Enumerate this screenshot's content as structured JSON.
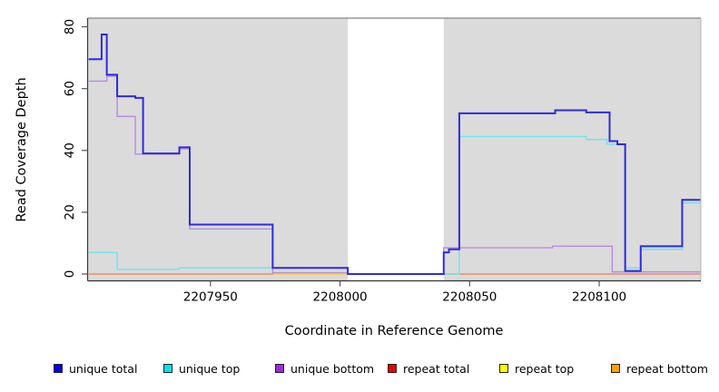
{
  "chart_data": {
    "type": "line",
    "subtype": "step-coverage-plot",
    "title": "",
    "xlabel": "Coordinate in Reference Genome",
    "ylabel": "Read Coverage Depth",
    "xlim": [
      2207902.6,
      2208139.2
    ],
    "ylim": [
      -2.2,
      82.8
    ],
    "grid": false,
    "legend_position": "bottom",
    "plot_background_color": "#DBDBDB",
    "no_data_band": {
      "from": 2208003,
      "to": 2208040,
      "color": "#FFFFFF"
    },
    "x_ticks": [
      {
        "value": 2207950,
        "label": "2207950"
      },
      {
        "value": 2208000,
        "label": "2208000"
      },
      {
        "value": 2208050,
        "label": "2208050"
      },
      {
        "value": 2208100,
        "label": "2208100"
      }
    ],
    "y_ticks": [
      {
        "value": 0,
        "label": "0"
      },
      {
        "value": 20,
        "label": "20"
      },
      {
        "value": 40,
        "label": "40"
      },
      {
        "value": 60,
        "label": "60"
      },
      {
        "value": 80,
        "label": "80"
      }
    ],
    "series": [
      {
        "name": "unique total",
        "legend_color": "#0000EE",
        "line_color": "#2E2BDB",
        "line_width": 2,
        "x_end": 2208139,
        "steps": [
          [
            2207903,
            69.5
          ],
          [
            2207908,
            77.5
          ],
          [
            2207910,
            64.5
          ],
          [
            2207914,
            57.5
          ],
          [
            2207921,
            57
          ],
          [
            2207924,
            39
          ],
          [
            2207938,
            41
          ],
          [
            2207942,
            16
          ],
          [
            2207974,
            2
          ],
          [
            2208003,
            0
          ],
          [
            2208040,
            7
          ],
          [
            2208042,
            8
          ],
          [
            2208046,
            52
          ],
          [
            2208083,
            53
          ],
          [
            2208095,
            52.3
          ],
          [
            2208104,
            43
          ],
          [
            2208107,
            42
          ],
          [
            2208110,
            1
          ],
          [
            2208116,
            9
          ],
          [
            2208132,
            24
          ]
        ]
      },
      {
        "name": "unique top",
        "legend_color": "#00E5EE",
        "line_color": "#72E2EE",
        "line_width": 1.4,
        "x_end": 2208139,
        "steps": [
          [
            2207903,
            7
          ],
          [
            2207914,
            1.5
          ],
          [
            2207938,
            2
          ],
          [
            2208003,
            0
          ],
          [
            2208046,
            44.5
          ],
          [
            2208095,
            43.5
          ],
          [
            2208103,
            42
          ],
          [
            2208110,
            2
          ],
          [
            2208116,
            8
          ],
          [
            2208132,
            23
          ]
        ]
      },
      {
        "name": "unique bottom",
        "legend_color": "#9C2CD6",
        "line_color": "#B78CDE",
        "line_width": 1.4,
        "x_end": 2208139,
        "steps": [
          [
            2207903,
            62.4
          ],
          [
            2207910,
            64
          ],
          [
            2207914,
            51
          ],
          [
            2207921,
            38.8
          ],
          [
            2207938,
            40.5
          ],
          [
            2207942,
            14.6
          ],
          [
            2207974,
            0.4
          ],
          [
            2208003,
            0
          ],
          [
            2208040,
            8.5
          ],
          [
            2208082,
            9
          ],
          [
            2208105,
            0.7
          ]
        ]
      },
      {
        "name": "repeat total",
        "legend_color": "#EE0000",
        "line_color": "#E8808C",
        "line_width": 1.1,
        "x_end": 2208139,
        "steps": [
          [
            2207903,
            0
          ],
          [
            2207974,
            0.45
          ],
          [
            2208003,
            0
          ]
        ]
      },
      {
        "name": "repeat top",
        "legend_color": "#FFFF00",
        "line_color": "#FFE93B",
        "line_width": 1.1,
        "x_end": 2208139,
        "steps": [
          [
            2207903,
            0
          ]
        ]
      },
      {
        "name": "repeat bottom",
        "legend_color": "#FFA200",
        "line_color": "#FF9D13",
        "line_width": 1.6,
        "x_end": 2208139,
        "steps": [
          [
            2207903,
            0
          ]
        ]
      }
    ]
  }
}
